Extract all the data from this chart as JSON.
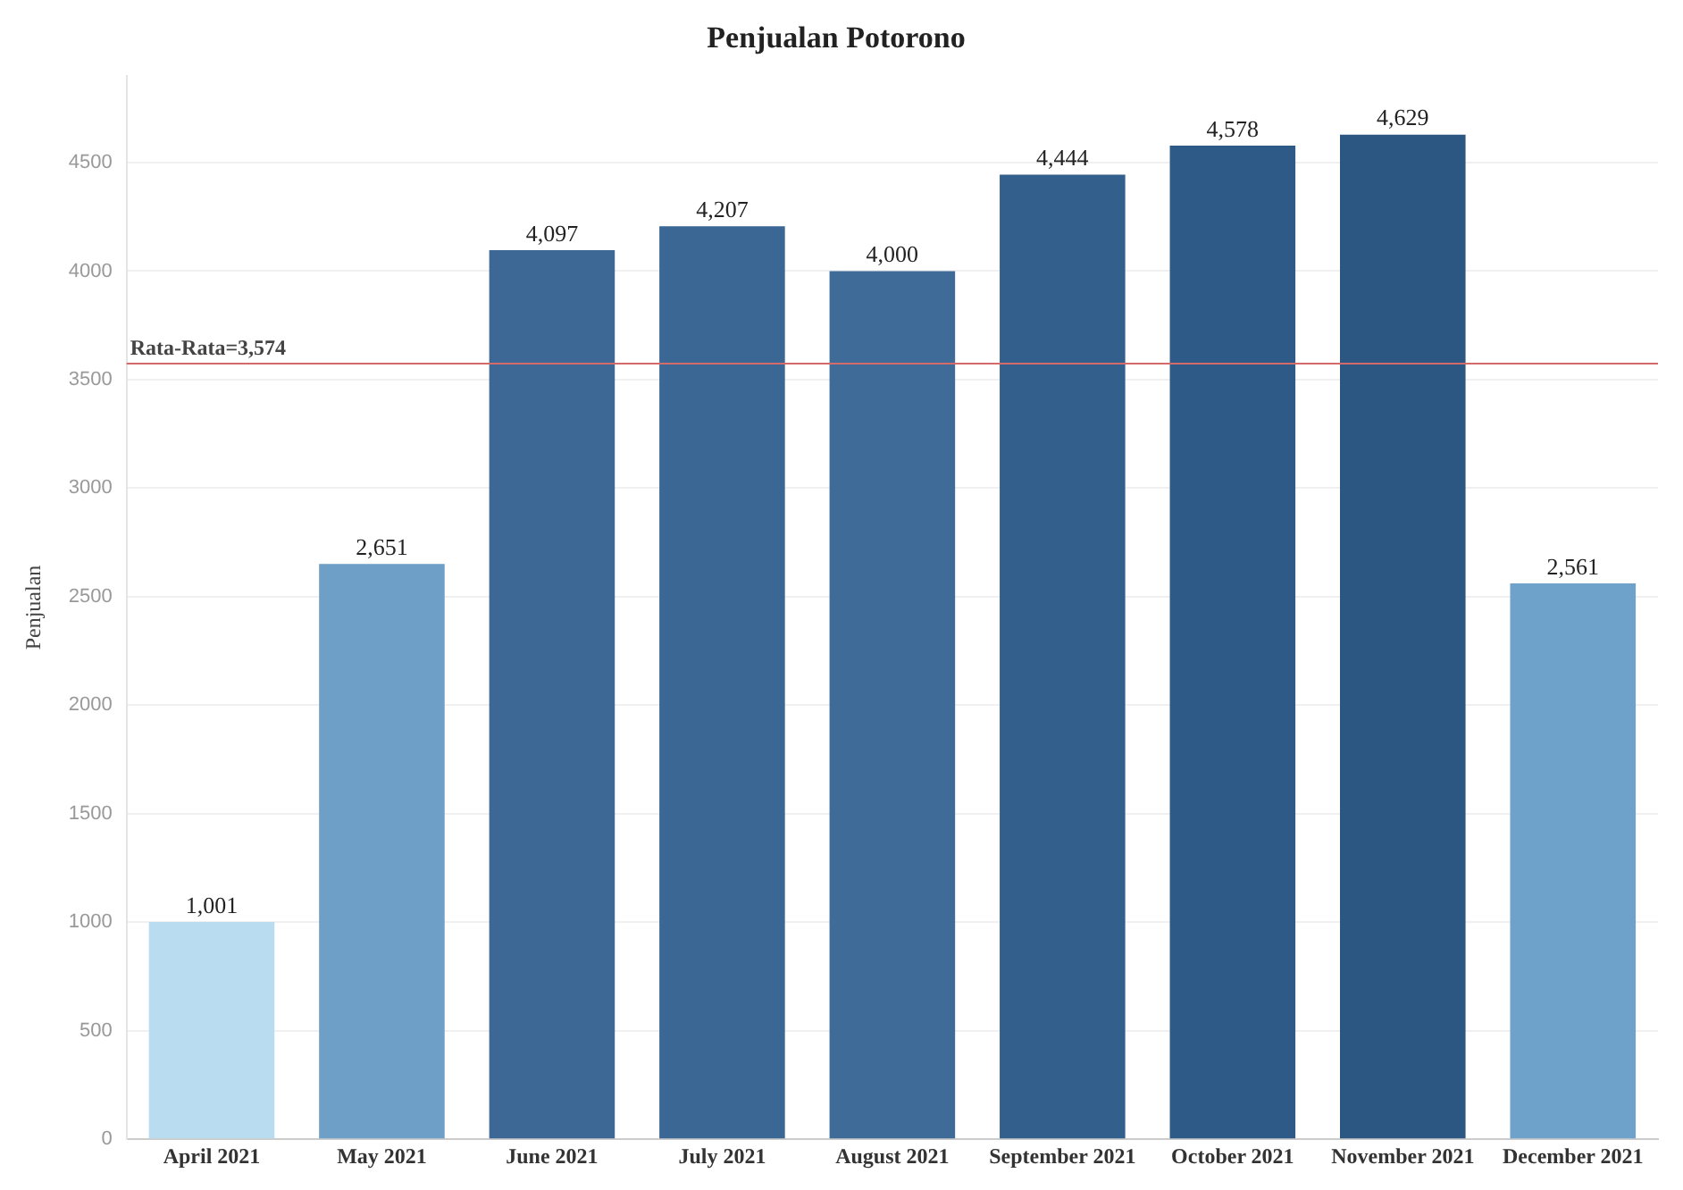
{
  "chart_data": {
    "type": "bar",
    "title": "Penjualan Potorono",
    "ylabel": "Penjualan",
    "categories": [
      "April 2021",
      "May 2021",
      "June 2021",
      "July 2021",
      "August 2021",
      "September 2021",
      "October 2021",
      "November 2021",
      "December 2021"
    ],
    "values": [
      1001,
      2651,
      4097,
      4207,
      4000,
      4444,
      4578,
      4629,
      2561
    ],
    "colors": [
      "#b9dcf0",
      "#6d9fc7",
      "#3d6896",
      "#3b6794",
      "#3f6b99",
      "#335f8c",
      "#2e5a87",
      "#2c5782",
      "#6fa2cb"
    ],
    "value_labels": [
      "1,001",
      "2,651",
      "4,097",
      "4,207",
      "4,000",
      "4,444",
      "4,578",
      "4,629",
      "2,561"
    ],
    "ylim": [
      0,
      4900
    ],
    "yticks": [
      0,
      500,
      1000,
      1500,
      2000,
      2500,
      3000,
      3500,
      4000,
      4500
    ],
    "grid": "y",
    "legend": false,
    "ref_lines": [
      {
        "axis": "y",
        "value": 3574,
        "label": "Rata-Rata=3,574",
        "color": "#d46a6a"
      }
    ]
  }
}
